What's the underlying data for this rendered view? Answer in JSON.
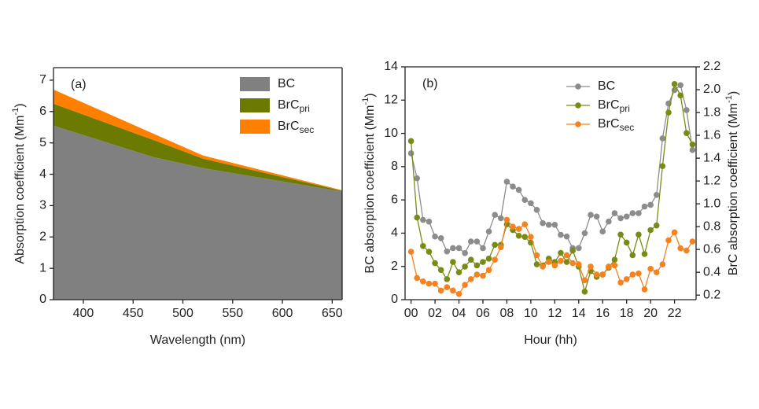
{
  "chart_data": [
    {
      "type": "area",
      "stacked": true,
      "panel_label": "(a)",
      "x": [
        370,
        470,
        520,
        660
      ],
      "xlim": [
        370,
        660
      ],
      "xticks": [
        400,
        450,
        500,
        550,
        600,
        650
      ],
      "ylim": [
        0,
        7.4
      ],
      "yticks": [
        0,
        1,
        2,
        3,
        4,
        5,
        6,
        7
      ],
      "x_label": "Wavelength (nm)",
      "y_label": {
        "text": "Absorption coefficient (Mm",
        "sup": "-1",
        "end": ")"
      },
      "legend": "upper right",
      "series": [
        {
          "name": "BC",
          "color": "#808080",
          "values": [
            5.55,
            4.55,
            4.2,
            3.45
          ]
        },
        {
          "name": "BrC",
          "subscript": "pri",
          "color": "#6b7a00",
          "values": [
            0.7,
            0.55,
            0.3,
            0.02
          ]
        },
        {
          "name": "BrC",
          "subscript": "sec",
          "color": "#ff8000",
          "values": [
            0.45,
            0.2,
            0.1,
            0.02
          ]
        }
      ]
    },
    {
      "type": "line",
      "panel_label": "(b)",
      "x": [
        0,
        0.5,
        1,
        1.5,
        2,
        2.5,
        3,
        3.5,
        4,
        4.5,
        5,
        5.5,
        6,
        6.5,
        7,
        7.5,
        8,
        8.5,
        9,
        9.5,
        10,
        10.5,
        11,
        11.5,
        12,
        12.5,
        13,
        13.5,
        14,
        14.5,
        15,
        15.5,
        16,
        16.5,
        17,
        17.5,
        18,
        18.5,
        19,
        19.5,
        20,
        20.5,
        21,
        21.5,
        22,
        22.5,
        23,
        23.5
      ],
      "xlim": [
        -0.5,
        23.8
      ],
      "xticks": [
        {
          "value": 0,
          "label": "00"
        },
        {
          "value": 2,
          "label": "02"
        },
        {
          "value": 4,
          "label": "04"
        },
        {
          "value": 6,
          "label": "06"
        },
        {
          "value": 8,
          "label": "08"
        },
        10,
        12,
        14,
        16,
        18,
        20,
        22
      ],
      "ylim": [
        0,
        14
      ],
      "yticks": [
        0,
        2,
        4,
        6,
        8,
        10,
        12,
        14
      ],
      "y2lim": [
        0.16,
        2.2
      ],
      "y2ticks": [
        0.2,
        0.4,
        0.6,
        0.8,
        {
          "value": 1,
          "label": "1.0"
        },
        1.2,
        1.4,
        1.6,
        1.8,
        {
          "value": 2,
          "label": "2.0"
        },
        2.2
      ],
      "x_label": "Hour (hh)",
      "y_label": {
        "text": "BC absorption coefficient (Mm",
        "sup": "-1",
        "end": ")"
      },
      "y2_label": {
        "text": "BrC absorption coefficient (Mm",
        "sup": "-1",
        "end": ")"
      },
      "legend": "upper right",
      "series": [
        {
          "name": "BC",
          "color": "#8c8c8c",
          "values": [
            8.8,
            7.3,
            4.8,
            4.7,
            3.8,
            3.7,
            2.9,
            3.1,
            3.1,
            2.8,
            3.5,
            3.5,
            3.1,
            4.1,
            5.1,
            4.9,
            7.1,
            6.8,
            6.6,
            6.0,
            5.8,
            5.4,
            4.6,
            4.5,
            4.5,
            3.9,
            3.8,
            3.1,
            3.1,
            4.0,
            5.1,
            5.0,
            4.1,
            4.7,
            5.2,
            4.9,
            5.0,
            5.2,
            5.2,
            5.6,
            5.7,
            6.3,
            9.7,
            11.8,
            12.6,
            12.9,
            11.4,
            9.0
          ]
        },
        {
          "name": "BrC",
          "subscript": "pri",
          "color": "#7a8b15",
          "axis": "y2",
          "values": [
            1.55,
            0.88,
            0.63,
            0.58,
            0.48,
            0.42,
            0.34,
            0.49,
            0.4,
            0.45,
            0.51,
            0.46,
            0.49,
            0.52,
            0.64,
            0.64,
            0.82,
            0.77,
            0.72,
            0.71,
            0.66,
            0.47,
            0.46,
            0.52,
            0.49,
            0.57,
            0.49,
            0.59,
            0.45,
            0.23,
            0.41,
            0.36,
            0.38,
            0.44,
            0.51,
            0.73,
            0.66,
            0.55,
            0.73,
            0.56,
            0.77,
            0.81,
            1.33,
            1.8,
            2.05,
            1.95,
            1.62,
            1.52
          ]
        },
        {
          "name": "BrC",
          "subscript": "sec",
          "color": "#f5821f",
          "axis": "y2",
          "values": [
            0.58,
            0.35,
            0.32,
            0.3,
            0.3,
            0.24,
            0.27,
            0.24,
            0.21,
            0.29,
            0.34,
            0.38,
            0.37,
            0.42,
            0.51,
            0.62,
            0.86,
            0.8,
            0.78,
            0.82,
            0.71,
            0.55,
            0.45,
            0.49,
            0.46,
            0.5,
            0.55,
            0.48,
            0.47,
            0.33,
            0.45,
            0.38,
            0.38,
            0.45,
            0.46,
            0.31,
            0.34,
            0.38,
            0.39,
            0.25,
            0.43,
            0.4,
            0.47,
            0.68,
            0.75,
            0.61,
            0.59,
            0.67
          ]
        }
      ]
    }
  ]
}
